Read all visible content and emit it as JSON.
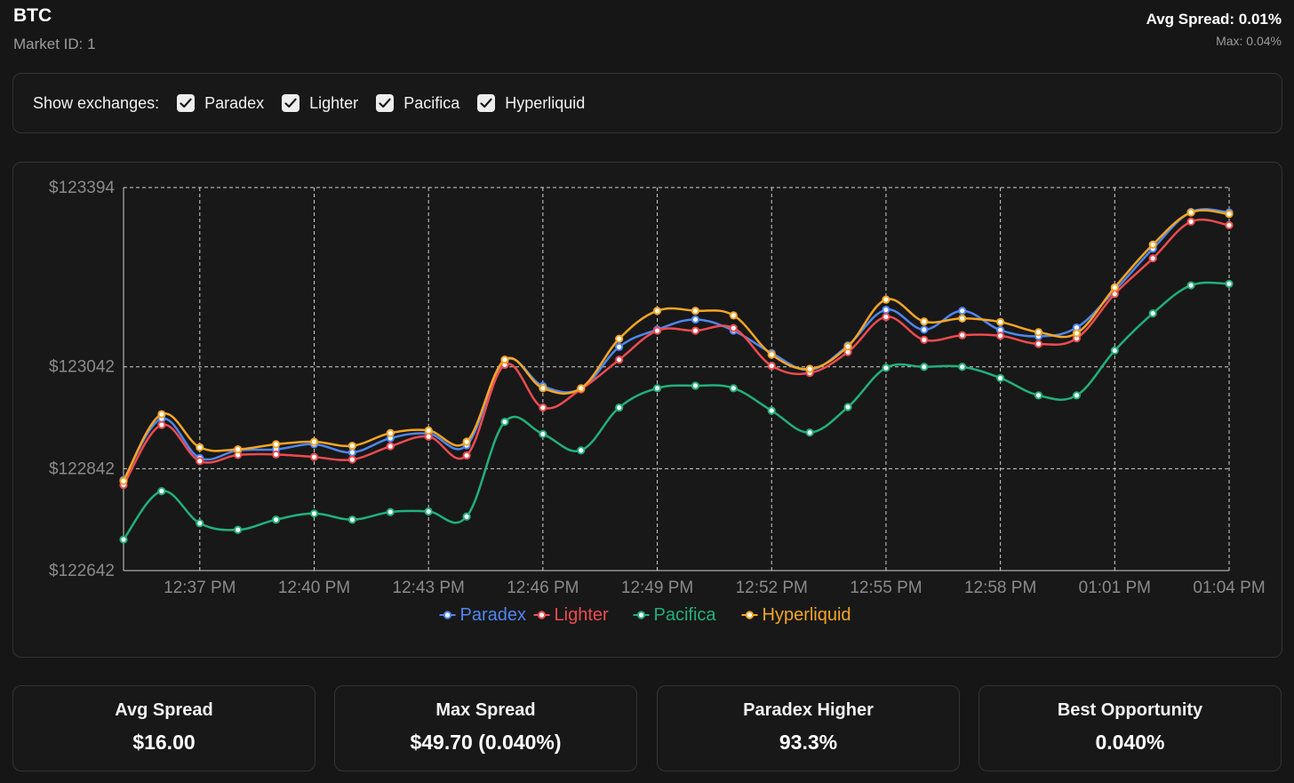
{
  "header": {
    "title": "BTC",
    "market_id": "Market ID: 1",
    "avg_spread": "Avg Spread: 0.01%",
    "max_spread": "Max: 0.04%"
  },
  "filters": {
    "label": "Show exchanges:",
    "items": [
      {
        "label": "Paradex",
        "checked": true
      },
      {
        "label": "Lighter",
        "checked": true
      },
      {
        "label": "Pacifica",
        "checked": true
      },
      {
        "label": "Hyperliquid",
        "checked": true
      }
    ]
  },
  "stats": [
    {
      "label": "Avg Spread",
      "value": "$16.00"
    },
    {
      "label": "Max Spread",
      "value": "$49.70 (0.040%)"
    },
    {
      "label": "Paradex Higher",
      "value": "93.3%"
    },
    {
      "label": "Best Opportunity",
      "value": "0.040%"
    }
  ],
  "chart_data": {
    "type": "line",
    "title": "",
    "xlabel": "",
    "ylabel": "",
    "ylim": [
      122642,
      123394
    ],
    "y_ticks": [
      {
        "value": 122642,
        "label": "$122642"
      },
      {
        "value": 122842,
        "label": "$122842"
      },
      {
        "value": 123042,
        "label": "$123042"
      },
      {
        "value": 123394,
        "label": "$123394"
      }
    ],
    "x_ticks": [
      {
        "index": 2,
        "label": "12:37 PM"
      },
      {
        "index": 5,
        "label": "12:40 PM"
      },
      {
        "index": 8,
        "label": "12:43 PM"
      },
      {
        "index": 11,
        "label": "12:46 PM"
      },
      {
        "index": 14,
        "label": "12:49 PM"
      },
      {
        "index": 17,
        "label": "12:52 PM"
      },
      {
        "index": 20,
        "label": "12:55 PM"
      },
      {
        "index": 23,
        "label": "12:58 PM"
      },
      {
        "index": 26,
        "label": "01:01 PM"
      },
      {
        "index": 29,
        "label": "01:04 PM"
      }
    ],
    "x_count": 30,
    "grid": true,
    "legend": "bottom-center",
    "series": [
      {
        "name": "Paradex",
        "color": "#4f86f0",
        "values": [
          122820,
          122940,
          122863,
          122878,
          122880,
          122890,
          122874,
          122902,
          122911,
          122888,
          123054,
          123004,
          122999,
          123081,
          123115,
          123135,
          123113,
          123069,
          123036,
          123084,
          123154,
          123115,
          123152,
          123114,
          123102,
          123119,
          123192,
          123274,
          123346,
          123345
        ]
      },
      {
        "name": "Lighter",
        "color": "#ef4b4f",
        "values": [
          122810,
          122928,
          122857,
          122869,
          122870,
          122865,
          122860,
          122886,
          122905,
          122868,
          123046,
          122962,
          122998,
          123056,
          123113,
          123113,
          123118,
          123044,
          123030,
          123071,
          123140,
          123095,
          123104,
          123103,
          123087,
          123098,
          123185,
          123255,
          123327,
          123320
        ]
      },
      {
        "name": "Pacifica",
        "color": "#22b07a",
        "values": [
          122703,
          122798,
          122735,
          122722,
          122742,
          122754,
          122742,
          122757,
          122758,
          122748,
          122934,
          122910,
          122878,
          122962,
          123000,
          123005,
          123000,
          122956,
          122913,
          122963,
          123040,
          123042,
          123042,
          123020,
          122986,
          122986,
          123074,
          123147,
          123202,
          123205
        ]
      },
      {
        "name": "Hyperliquid",
        "color": "#f5a623",
        "values": [
          122818,
          122949,
          122884,
          122880,
          122890,
          122895,
          122887,
          122912,
          122917,
          122895,
          123056,
          123000,
          123000,
          123097,
          123152,
          123152,
          123143,
          123066,
          123038,
          123082,
          123174,
          123131,
          123137,
          123130,
          123110,
          123108,
          123198,
          123282,
          123345,
          123342
        ]
      }
    ]
  }
}
